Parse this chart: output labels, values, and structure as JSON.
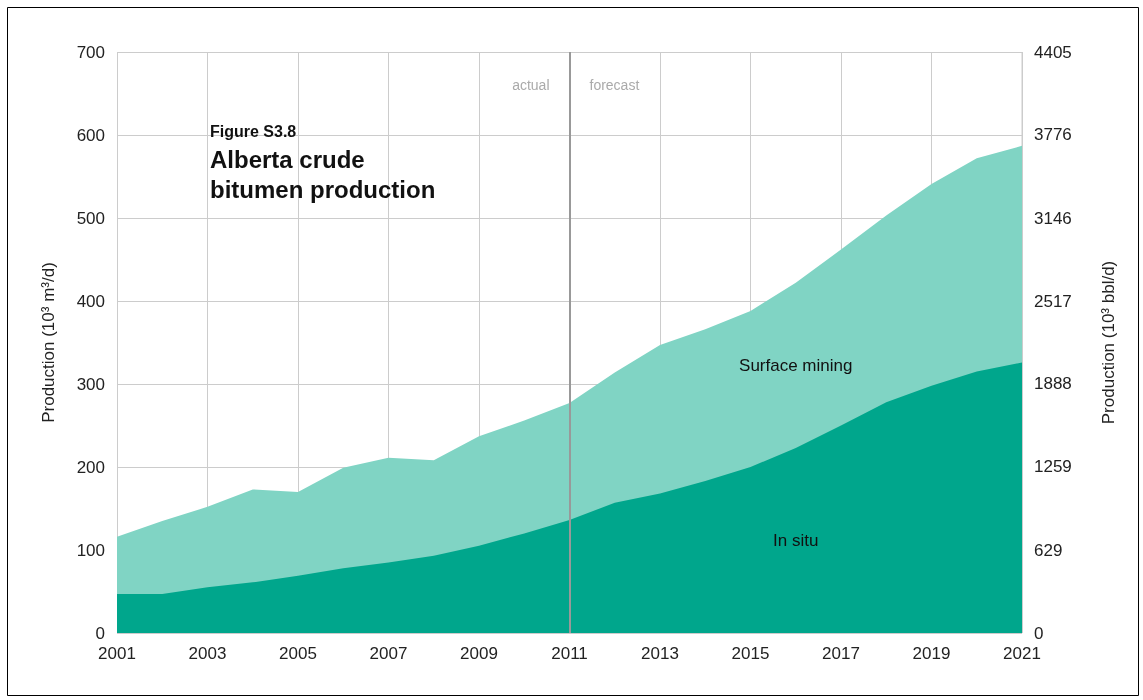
{
  "chart_data": {
    "type": "area",
    "title": "Alberta crude bitumen production",
    "subtitle": "Figure S3.8",
    "ylabel": "Production (10³ m³/d)",
    "y2label": "Production (10³ bbl/d)",
    "x": [
      2001,
      2002,
      2003,
      2004,
      2005,
      2006,
      2007,
      2008,
      2009,
      2010,
      2011,
      2012,
      2013,
      2014,
      2015,
      2016,
      2017,
      2018,
      2019,
      2020,
      2021
    ],
    "stacked": true,
    "series": [
      {
        "name": "In situ",
        "color": "#00a68c",
        "values": [
          47,
          47,
          55,
          61,
          69,
          78,
          85,
          93,
          105,
          120,
          136,
          157,
          168,
          183,
          200,
          223,
          250,
          278,
          298,
          315,
          326
        ]
      },
      {
        "name": "Surface mining",
        "color": "#80d4c4",
        "values": [
          69,
          88,
          97,
          112,
          101,
          121,
          126,
          115,
          132,
          136,
          141,
          157,
          179,
          183,
          188,
          199,
          212,
          225,
          243,
          257,
          261
        ]
      }
    ],
    "xlim": [
      2001,
      2021
    ],
    "xticks": [
      2001,
      2003,
      2005,
      2007,
      2009,
      2011,
      2013,
      2015,
      2017,
      2019,
      2021
    ],
    "ylim": [
      0,
      700
    ],
    "yticks": [
      0,
      100,
      200,
      300,
      400,
      500,
      600,
      700
    ],
    "y2lim": [
      0,
      4405
    ],
    "y2ticks": [
      0,
      629,
      1259,
      1888,
      2517,
      3146,
      3776,
      4405
    ],
    "ref_lines": [
      {
        "axis": "x",
        "value": 2011,
        "color": "#999999",
        "line_style": "solid"
      }
    ],
    "annotations": [
      {
        "text": "actual",
        "x": 2011,
        "y": 660
      },
      {
        "text": "forecast",
        "x": 2011,
        "y": 660
      }
    ],
    "grid": true,
    "legend": false
  }
}
